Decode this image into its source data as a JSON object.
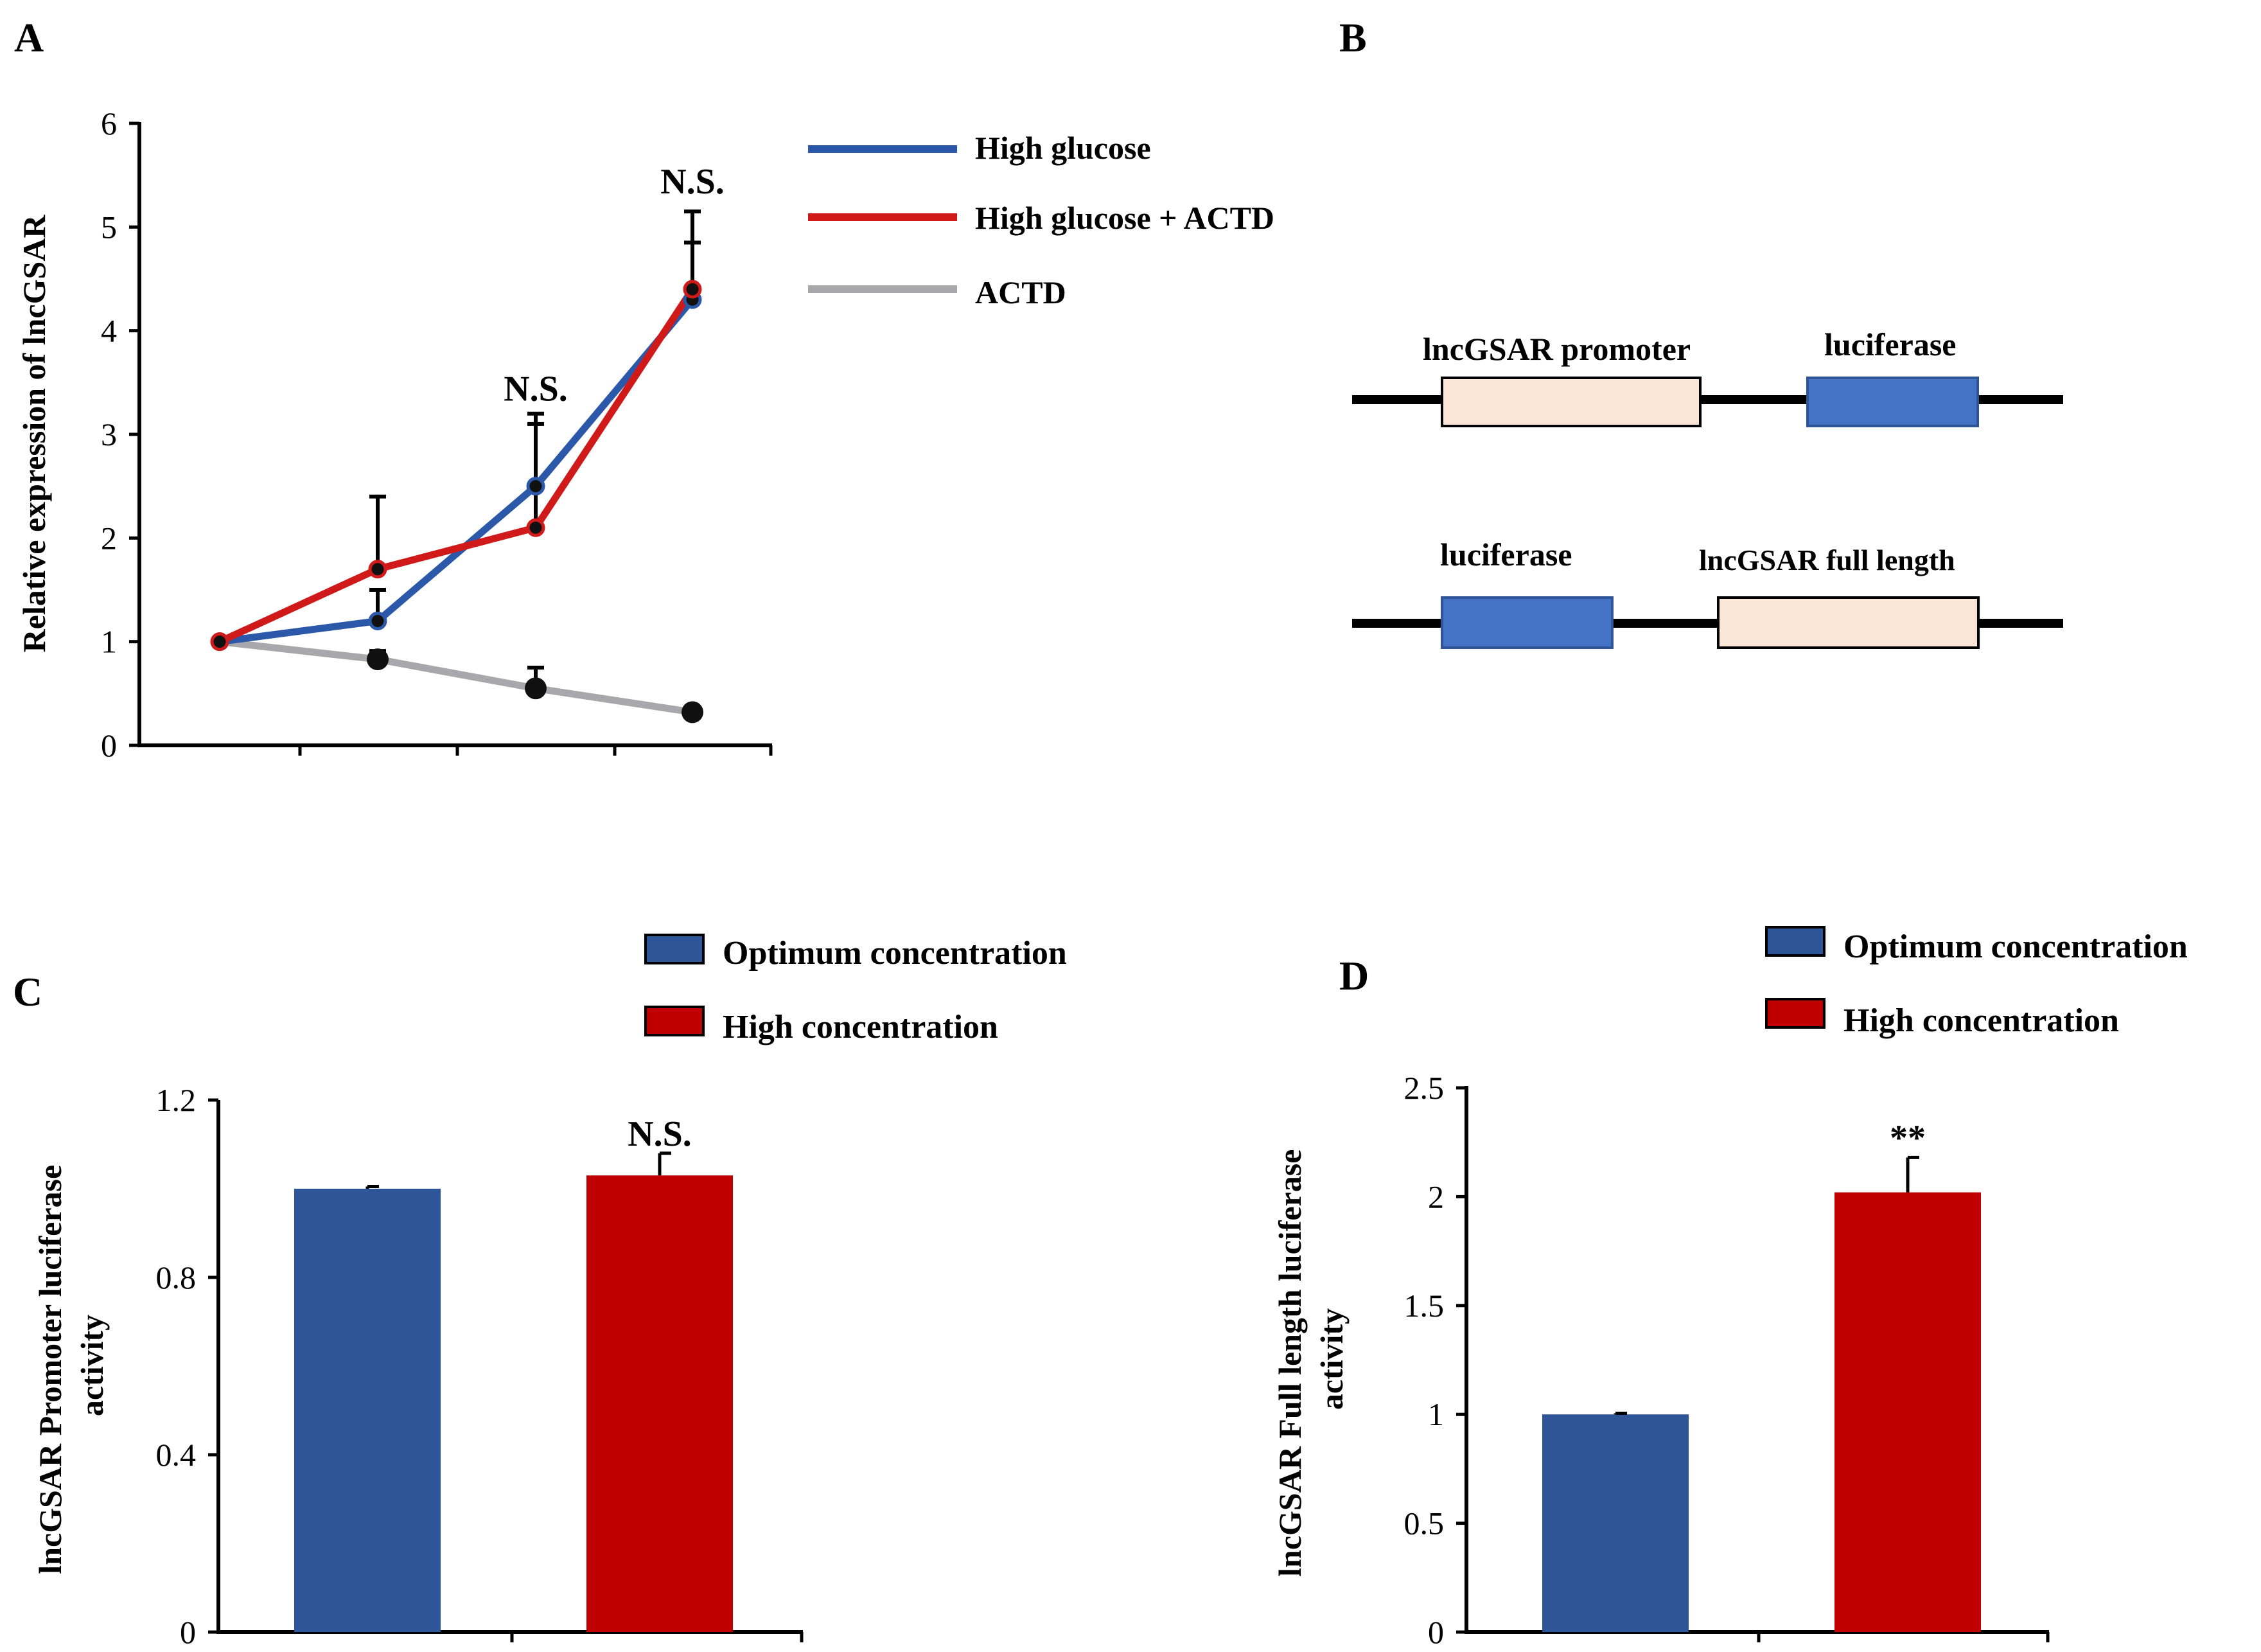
{
  "panels": {
    "A": "A",
    "B": "B",
    "C": "C",
    "D": "D"
  },
  "chart_data": [
    {
      "panel": "A",
      "type": "line",
      "title": "",
      "xlabel": "",
      "ylabel": "Relative expression of lncGSAR",
      "ylim": [
        0,
        6
      ],
      "yticks": [
        "0",
        "1",
        "2",
        "3",
        "4",
        "5",
        "6"
      ],
      "x": [
        1,
        2,
        3,
        4
      ],
      "series": [
        {
          "name": "High glucose",
          "color": "#2b58a8",
          "values": [
            1.0,
            1.2,
            2.5,
            4.3
          ],
          "errors": [
            0,
            0.3,
            0.6,
            0.55
          ]
        },
        {
          "name": "High glucose + ACTD",
          "color": "#d01a1a",
          "values": [
            1.0,
            1.7,
            2.1,
            4.4
          ],
          "errors": [
            0,
            0.7,
            1.1,
            0.75
          ]
        },
        {
          "name": "ACTD",
          "color": "#a8a8ac",
          "values": [
            1.0,
            0.83,
            0.55,
            0.32
          ],
          "errors": [
            0,
            0.08,
            0.2,
            0.03
          ]
        }
      ],
      "annotations": [
        {
          "text": "N.S.",
          "x": 3,
          "y": 3.2
        },
        {
          "text": "N.S.",
          "x": 4,
          "y": 5.2
        }
      ],
      "legend": "top-right"
    },
    {
      "panel": "C",
      "type": "bar",
      "title": "",
      "xlabel": "",
      "ylabel_lines": [
        "lncGSAR Promoter luciferase",
        "activity"
      ],
      "ylim": [
        0,
        1.2
      ],
      "yticks": [
        "0",
        "0.4",
        "0.8",
        "1.2"
      ],
      "categories": [
        "Optimum concentration",
        "High concentration"
      ],
      "values": [
        1.0,
        1.03
      ],
      "errors": [
        0.005,
        0.05
      ],
      "colors": [
        "#2e5597",
        "#c00000"
      ],
      "annotations": [
        {
          "text": "N.S.",
          "bar": 1
        }
      ],
      "legend": "top"
    },
    {
      "panel": "D",
      "type": "bar",
      "title": "",
      "xlabel": "",
      "ylabel_lines": [
        "lncGSAR Full length luciferase",
        "activity"
      ],
      "ylim": [
        0,
        2.5
      ],
      "yticks": [
        "0",
        "0.5",
        "1",
        "1.5",
        "2",
        "2.5"
      ],
      "categories": [
        "Optimum concentration",
        "High concentration"
      ],
      "values": [
        1.0,
        2.02
      ],
      "errors": [
        0.005,
        0.16
      ],
      "colors": [
        "#2e5597",
        "#c00000"
      ],
      "annotations": [
        {
          "text": "**",
          "bar": 1
        }
      ],
      "legend": "top"
    }
  ],
  "diagram_B": {
    "construct1": {
      "promoter": "lncGSAR promoter",
      "reporter": "luciferase"
    },
    "construct2": {
      "reporter": "luciferase",
      "full_length": "lncGSAR full length"
    },
    "colors": {
      "luciferase": "#4472c4",
      "lncgsar": "#fbe5d6",
      "line": "#000000"
    }
  }
}
